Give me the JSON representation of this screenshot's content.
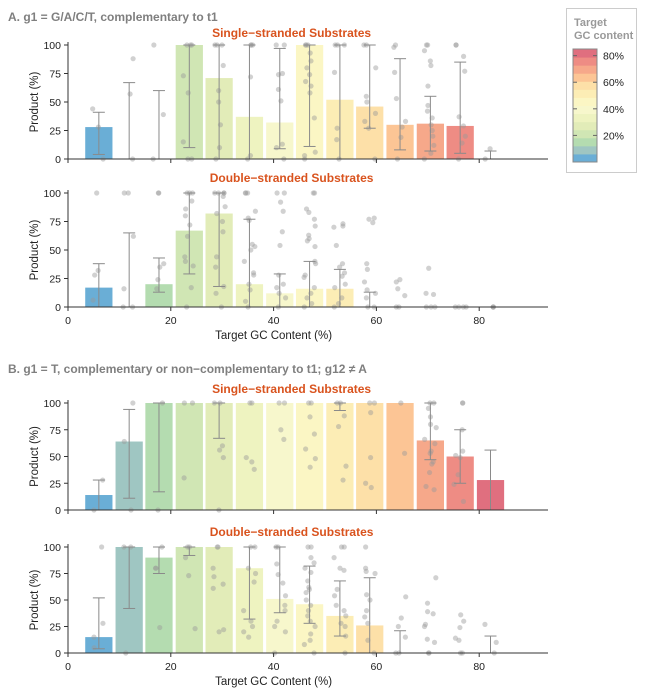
{
  "panels": [
    {
      "title": "A. g1 = G/A/C/T, complementary to t1"
    },
    {
      "title": "B. g1 = T, complementary or non−complementary to t1; g12 ≠ A"
    }
  ],
  "legend": {
    "title_line1": "Target",
    "title_line2": "GC content",
    "ticks": [
      "20%",
      "40%",
      "60%",
      "80%"
    ],
    "tick_values": [
      20,
      40,
      60,
      80
    ],
    "range": [
      0,
      85
    ],
    "colormap": [
      "#6aaed6",
      "#9fc6c2",
      "#b4dcb0",
      "#d0e6b4",
      "#e2ecb8",
      "#eef3c0",
      "#f7f7cc",
      "#fbf6c4",
      "#fcedb5",
      "#fde0a8",
      "#fcc595",
      "#f6a88a",
      "#ee8c84",
      "#e06f7f"
    ]
  },
  "chart_data": [
    {
      "type": "bar",
      "panel": "A",
      "title": "Single−stranded Substrates",
      "xlabel": "",
      "ylabel": "Product (%)",
      "xlim": [
        0,
        87
      ],
      "ylim": [
        0,
        100
      ],
      "xticks": [
        0,
        20,
        40,
        60,
        80
      ],
      "yticks": [
        0,
        25,
        50,
        75,
        100
      ],
      "x": [
        6,
        11.9,
        17.7,
        23.6,
        29.4,
        35.3,
        41.2,
        47,
        52.9,
        58.7,
        64.6,
        70.5,
        76.3,
        82.2
      ],
      "values": [
        28,
        0,
        0,
        100,
        71,
        37,
        32,
        100,
        52,
        46,
        30,
        31,
        29,
        0
      ],
      "err_low": [
        4,
        0,
        0,
        10,
        0,
        0,
        9,
        11,
        0,
        27,
        8,
        7,
        5,
        0
      ],
      "err_high": [
        41,
        67,
        60,
        100,
        100,
        100,
        97,
        100,
        100,
        100,
        88,
        55,
        85,
        7
      ],
      "points": [
        [
          44,
          28,
          0
        ],
        [
          88,
          57,
          0
        ],
        [
          100,
          39,
          0
        ],
        [
          100,
          100,
          100,
          73,
          58,
          15,
          0,
          0
        ],
        [
          100,
          100,
          100,
          82,
          60,
          50,
          30,
          10,
          0
        ],
        [
          100,
          100,
          100,
          72,
          3,
          0
        ],
        [
          100,
          100,
          75,
          74,
          61,
          51,
          13,
          10,
          0
        ],
        [
          100,
          100,
          100,
          93,
          86,
          80,
          74,
          68,
          64,
          58,
          36,
          6,
          3,
          0
        ],
        [
          100,
          100,
          100,
          76,
          27,
          17,
          0
        ],
        [
          100,
          100,
          80,
          55,
          50,
          40,
          33,
          27,
          0
        ],
        [
          100,
          98,
          76,
          53,
          33,
          28,
          19,
          0
        ],
        [
          100,
          100,
          95,
          86,
          82,
          64,
          47,
          42,
          36,
          30,
          25,
          20,
          12,
          5,
          0
        ],
        [
          100,
          100,
          90,
          77,
          37,
          29,
          20,
          14,
          0
        ],
        [
          9,
          0
        ]
      ]
    },
    {
      "type": "bar",
      "panel": "A",
      "title": "Double−stranded Substrates",
      "xlabel": "Target GC Content (%)",
      "ylabel": "Product (%)",
      "xlim": [
        0,
        87
      ],
      "ylim": [
        0,
        100
      ],
      "xticks": [
        0,
        20,
        40,
        60,
        80
      ],
      "yticks": [
        0,
        25,
        50,
        75,
        100
      ],
      "x": [
        6,
        11.9,
        17.7,
        23.6,
        29.4,
        35.3,
        41.2,
        47,
        52.9,
        58.7,
        64.6,
        70.5,
        76.3,
        82.2
      ],
      "values": [
        17,
        0,
        20,
        67,
        82,
        20,
        12,
        16,
        16,
        0,
        0,
        0,
        0,
        0
      ],
      "err_low": [
        0,
        0,
        13,
        29,
        18,
        0,
        0,
        0,
        0,
        0,
        0,
        0,
        0,
        0
      ],
      "err_high": [
        38,
        65,
        43,
        100,
        100,
        77,
        29,
        40,
        33,
        13,
        0,
        0,
        0,
        0
      ],
      "points": [
        [
          100,
          32,
          28,
          6
        ],
        [
          100,
          100,
          62,
          16,
          0,
          0
        ],
        [
          100,
          100,
          38,
          35,
          24,
          16
        ],
        [
          100,
          100,
          100,
          93,
          86,
          80,
          72,
          62,
          44,
          40,
          36,
          17,
          0
        ],
        [
          100,
          100,
          100,
          100,
          97,
          88,
          82,
          75,
          66,
          44,
          35,
          18,
          12,
          0
        ],
        [
          100,
          100,
          100,
          84,
          78,
          76,
          55,
          53,
          50,
          40,
          30,
          28,
          20,
          15,
          5,
          0
        ],
        [
          100,
          100,
          92,
          84,
          66,
          54,
          28,
          20,
          17,
          12,
          8,
          0
        ],
        [
          100,
          100,
          86,
          83,
          77,
          71,
          63,
          60,
          58,
          53,
          40,
          38,
          28,
          26,
          17,
          12,
          8,
          3,
          0
        ],
        [
          73,
          71,
          70,
          54,
          38,
          35,
          30,
          27,
          20,
          17,
          8,
          3,
          0
        ],
        [
          77,
          78,
          74,
          38,
          33,
          22,
          15,
          12,
          8,
          0,
          0
        ],
        [
          24,
          22,
          16,
          10,
          0,
          0
        ],
        [
          34,
          12,
          11,
          0,
          0,
          0
        ],
        [
          0,
          0,
          0,
          0
        ],
        [
          0,
          0,
          0
        ]
      ]
    },
    {
      "type": "bar",
      "panel": "B",
      "title": "Single−stranded Substrates",
      "xlabel": "",
      "ylabel": "Product (%)",
      "xlim": [
        0,
        87
      ],
      "ylim": [
        0,
        100
      ],
      "xticks": [
        0,
        20,
        40,
        60,
        80
      ],
      "yticks": [
        0,
        25,
        50,
        75,
        100
      ],
      "x": [
        6,
        11.9,
        17.7,
        23.6,
        29.4,
        35.3,
        41.2,
        47,
        52.9,
        58.7,
        64.6,
        70.5,
        76.3,
        82.2
      ],
      "values": [
        14,
        64,
        100,
        100,
        100,
        100,
        100,
        100,
        100,
        100,
        100,
        65,
        50,
        28
      ],
      "err_low": [
        0,
        11,
        17,
        100,
        67,
        100,
        100,
        100,
        93,
        100,
        100,
        47,
        25,
        0
      ],
      "err_high": [
        28,
        94,
        100,
        100,
        100,
        100,
        100,
        100,
        100,
        100,
        100,
        100,
        75,
        56
      ],
      "points": [
        [
          28,
          0
        ],
        [
          100,
          64,
          0
        ],
        [
          100,
          0
        ],
        [
          100,
          100,
          30
        ],
        [
          100,
          100,
          60,
          56,
          49,
          0
        ],
        [
          100,
          100,
          49,
          45,
          38
        ],
        [
          100,
          100,
          75,
          66
        ],
        [
          100,
          100,
          87,
          71,
          57,
          48,
          40
        ],
        [
          100,
          100,
          88,
          78,
          41,
          28
        ],
        [
          100,
          100,
          91,
          49,
          25,
          21
        ],
        [
          100,
          53
        ],
        [
          100,
          100,
          95,
          87,
          80,
          77,
          66,
          62,
          55,
          53,
          45,
          43,
          35,
          22,
          19
        ],
        [
          100,
          100,
          75,
          55,
          51,
          49,
          33,
          24,
          8
        ],
        []
      ]
    },
    {
      "type": "bar",
      "panel": "B",
      "title": "Double−stranded Substrates",
      "xlabel": "Target GC Content (%)",
      "ylabel": "Product (%)",
      "xlim": [
        0,
        87
      ],
      "ylim": [
        0,
        100
      ],
      "xticks": [
        0,
        20,
        40,
        60,
        80
      ],
      "yticks": [
        0,
        25,
        50,
        75,
        100
      ],
      "x": [
        6,
        11.9,
        17.7,
        23.6,
        29.4,
        35.3,
        41.2,
        47,
        52.9,
        58.7,
        64.6,
        70.5,
        76.3,
        82.2
      ],
      "values": [
        15,
        100,
        90,
        100,
        100,
        80,
        51,
        46,
        35,
        26,
        0,
        0,
        0,
        0
      ],
      "err_low": [
        4,
        42,
        75,
        92,
        100,
        32,
        38,
        28,
        16,
        0,
        0,
        0,
        0,
        0
      ],
      "err_high": [
        52,
        100,
        100,
        100,
        100,
        100,
        100,
        82,
        68,
        71,
        21,
        0,
        0,
        16
      ],
      "points": [
        [
          100,
          28,
          15,
          5
        ],
        [
          100,
          100,
          0
        ],
        [
          100,
          80,
          80,
          24
        ],
        [
          100,
          100,
          90,
          73,
          23
        ],
        [
          100,
          100,
          80,
          72,
          65,
          61,
          22,
          20
        ],
        [
          100,
          100,
          80,
          75,
          67,
          40,
          30,
          25,
          20,
          15
        ],
        [
          100,
          100,
          84,
          74,
          66,
          54,
          45,
          40,
          30,
          25,
          20,
          0
        ],
        [
          100,
          100,
          90,
          85,
          80,
          76,
          68,
          62,
          60,
          57,
          50,
          45,
          40,
          35,
          30,
          25,
          18,
          12,
          8,
          0
        ],
        [
          100,
          100,
          90,
          80,
          78,
          60,
          54,
          45,
          40,
          35,
          28,
          25,
          16,
          0
        ],
        [
          100,
          80,
          77,
          75,
          55,
          50,
          40,
          34,
          28,
          12,
          0
        ],
        [
          53,
          33,
          25,
          15,
          0,
          0
        ],
        [
          71,
          47,
          39,
          37,
          27,
          25,
          13,
          10,
          0,
          0
        ],
        [
          36,
          30,
          24,
          14,
          12,
          0,
          0
        ],
        [
          27,
          10,
          0
        ]
      ]
    }
  ]
}
